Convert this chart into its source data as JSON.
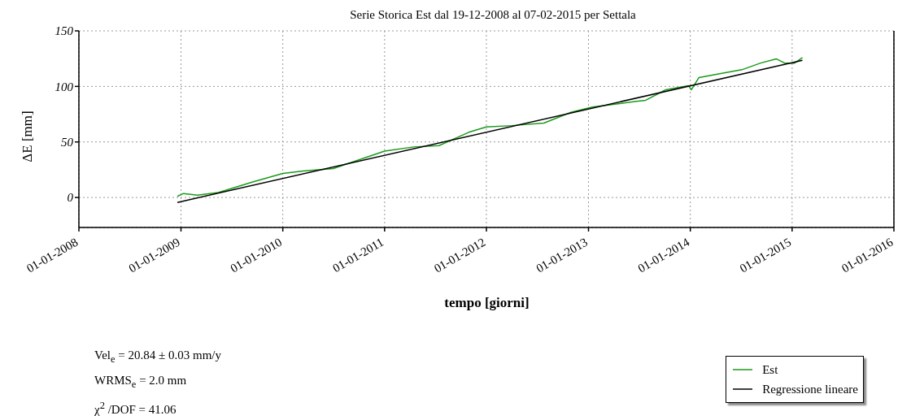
{
  "chart_data": {
    "type": "line",
    "title": "Serie Storica Est dal 19-12-2008 al 07-02-2015 per Settala",
    "xlabel": "tempo [giorni]",
    "ylabel": "ΔE  [mm]",
    "xlim": [
      "2008-01-01",
      "2016-01-01"
    ],
    "xticks": [
      {
        "value": "2008-01-01",
        "label": "01-01-2008"
      },
      {
        "value": "2009-01-01",
        "label": "01-01-2009"
      },
      {
        "value": "2010-01-01",
        "label": "01-01-2010"
      },
      {
        "value": "2011-01-01",
        "label": "01-01-2011"
      },
      {
        "value": "2012-01-01",
        "label": "01-01-2012"
      },
      {
        "value": "2013-01-01",
        "label": "01-01-2013"
      },
      {
        "value": "2014-01-01",
        "label": "01-01-2014"
      },
      {
        "value": "2015-01-01",
        "label": "01-01-2015"
      },
      {
        "value": "2016-01-01",
        "label": "01-01-2016"
      }
    ],
    "ylim": [
      -27,
      150
    ],
    "yticks": [
      0,
      50,
      100,
      150
    ],
    "grid": true,
    "legend": "bottom right",
    "marker": "none",
    "line_style": "solid",
    "series": [
      {
        "name": "Est",
        "color": "#1a9a1a",
        "x": [
          "2008-12-19",
          "2009-01-10",
          "2009-03-01",
          "2009-05-15",
          "2009-09-15",
          "2010-01-01",
          "2010-03-15",
          "2010-07-01",
          "2011-01-01",
          "2011-04-15",
          "2011-07-15",
          "2011-10-30",
          "2012-01-01",
          "2012-04-01",
          "2012-07-25",
          "2012-10-30",
          "2013-01-15",
          "2013-06-15",
          "2013-07-25",
          "2013-10-05",
          "2013-12-25",
          "2014-01-05",
          "2014-02-01",
          "2014-04-20",
          "2014-07-05",
          "2014-09-10",
          "2014-11-05",
          "2014-12-05",
          "2015-01-10",
          "2015-02-07"
        ],
        "values": [
          1,
          3.6,
          2,
          4.5,
          14,
          21.6,
          23.8,
          26,
          41.8,
          45.5,
          46.7,
          58.7,
          63.5,
          64.7,
          67,
          76.7,
          81.5,
          86.3,
          87.5,
          97,
          100.7,
          97,
          108,
          111.6,
          115,
          121,
          124.8,
          121,
          121,
          126
        ]
      },
      {
        "name": "Regressione lineare",
        "color": "#000000",
        "x": [
          "2008-12-19",
          "2015-02-07"
        ],
        "values": [
          -4.5,
          123.5
        ]
      }
    ],
    "annotations": [
      "Vel$_{e}$ =  20.84 ± 0.03  mm/y",
      "WRMS$_{e}$ =  2.0  mm",
      "χ$^{2}$ /DOF  =  41.06"
    ]
  }
}
